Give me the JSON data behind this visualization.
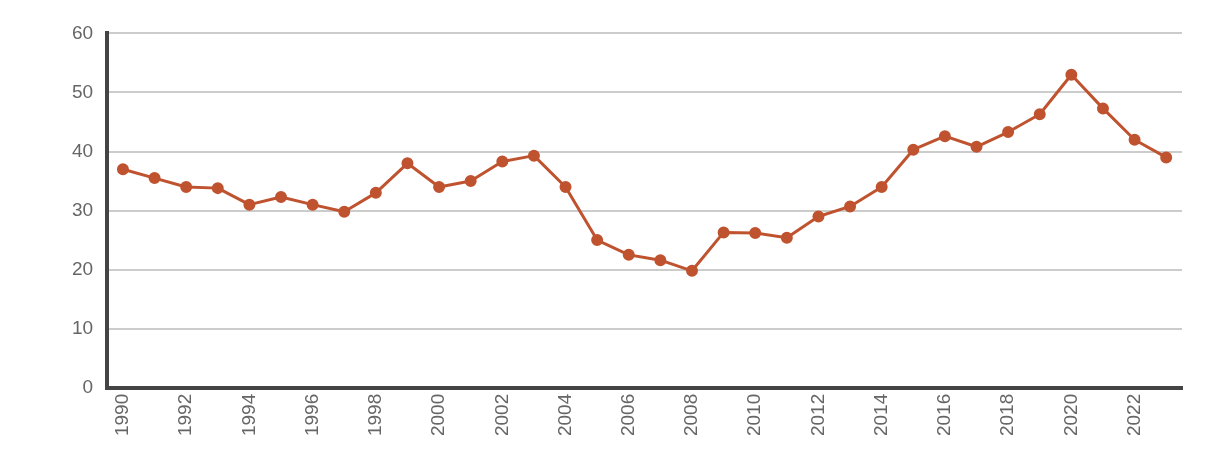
{
  "chart_data": {
    "type": "line",
    "categories": [
      "1990",
      null,
      "1992",
      null,
      "1994",
      null,
      "1996",
      null,
      "1998",
      null,
      "2000",
      null,
      "2002",
      null,
      "2004",
      null,
      "2006",
      null,
      "2008",
      null,
      "2010",
      null,
      "2012",
      null,
      "2014",
      null,
      "2016",
      null,
      "2018",
      null,
      "2020",
      null,
      "2022",
      null
    ],
    "series": [
      {
        "color": "#c0532f",
        "values": [
          37,
          35.5,
          34,
          33.8,
          31,
          32.3,
          31,
          29.8,
          33,
          38,
          34,
          35,
          38.3,
          39.3,
          34,
          25,
          22.5,
          21.6,
          19.8,
          26.3,
          26.2,
          25.4,
          29,
          30.7,
          34,
          40.3,
          42.6,
          40.8,
          43.3,
          46.3,
          53,
          47.3,
          42,
          39
        ]
      }
    ],
    "ylim": [
      0,
      60
    ],
    "yticks": [
      0,
      10,
      20,
      30,
      40,
      50,
      60
    ],
    "grid": "y",
    "legend": false,
    "marker": "circle",
    "line_style": "solid"
  }
}
